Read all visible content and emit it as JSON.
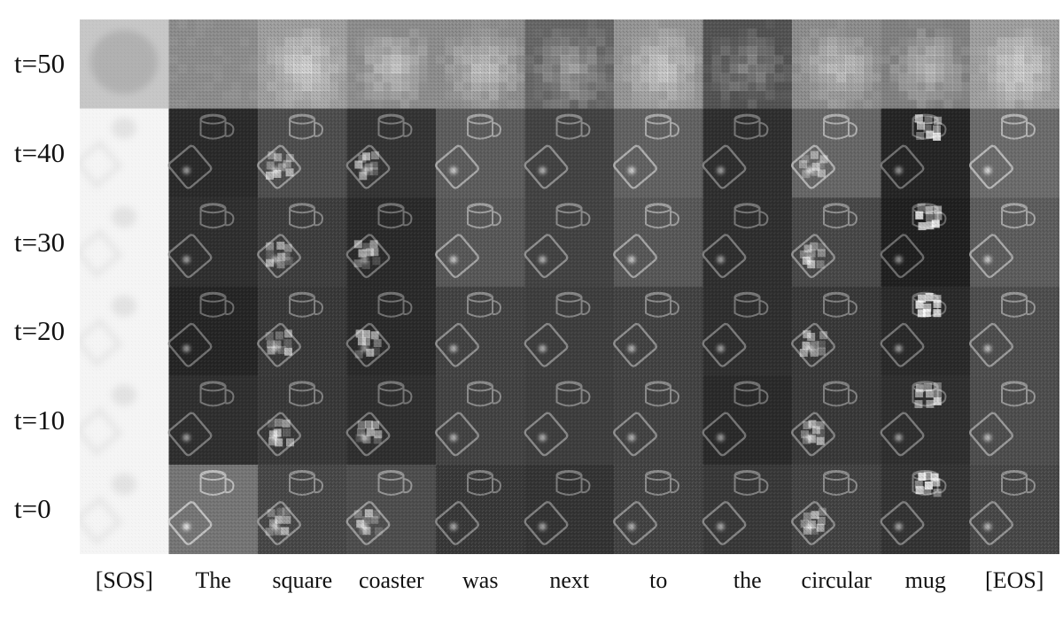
{
  "figure": {
    "rows": [
      {
        "label": "t=50",
        "t": 50
      },
      {
        "label": "t=40",
        "t": 40
      },
      {
        "label": "t=30",
        "t": 30
      },
      {
        "label": "t=20",
        "t": 20
      },
      {
        "label": "t=10",
        "t": 10
      },
      {
        "label": "t=0",
        "t": 0
      }
    ],
    "columns": [
      {
        "label": "[SOS]"
      },
      {
        "label": "The"
      },
      {
        "label": "square"
      },
      {
        "label": "coaster"
      },
      {
        "label": "was"
      },
      {
        "label": "next"
      },
      {
        "label": "to"
      },
      {
        "label": "the"
      },
      {
        "label": "circular"
      },
      {
        "label": "mug"
      },
      {
        "label": "[EOS]"
      }
    ]
  }
}
